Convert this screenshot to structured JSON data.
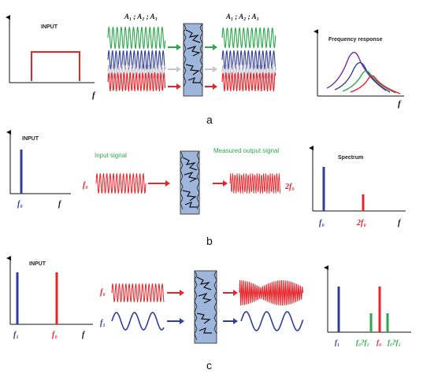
{
  "colors": {
    "red": "#e8242a",
    "blue": "#2f3d9c",
    "green": "#2aa84a",
    "gray": "#c6c6c6",
    "purple": "#7a2aa0",
    "sample_fill": "#9fb6dc",
    "dark": "#111111"
  },
  "panel_a": {
    "letter": "a",
    "input_title": "INPUT",
    "x_axis_symbol": "f",
    "amplitudes_left": "A₁ ; A₂ ; A₃",
    "amplitudes_right": "A₁ ; A₂ ; A₃",
    "response_title": "Frequency response",
    "response_x_symbol": "f"
  },
  "panel_b": {
    "letter": "b",
    "input_title": "INPUT",
    "f0_label": "f₀",
    "x_axis_symbol": "f",
    "input_signal_label": "Input signal",
    "measured_output_label": "Measured output signal",
    "signal_freq_label": "f₀",
    "harmonic_label": "2f₀",
    "spectrum_title": "Spectrum",
    "spectrum_f0": "f₀",
    "spectrum_2f0": "2f₀",
    "spectrum_x_symbol": "f"
  },
  "panel_c": {
    "letter": "c",
    "input_title": "INPUT",
    "f1_label": "f₁",
    "f0_label": "f₀",
    "x_axis_symbol": "f",
    "signal_f0_label": "f₀",
    "signal_f1_label": "f₁",
    "spectrum_f1": "f₁",
    "spectrum_diff": "f₀?f₁",
    "spectrum_f0": "f₀",
    "spectrum_sum": "f₀?f₁"
  }
}
